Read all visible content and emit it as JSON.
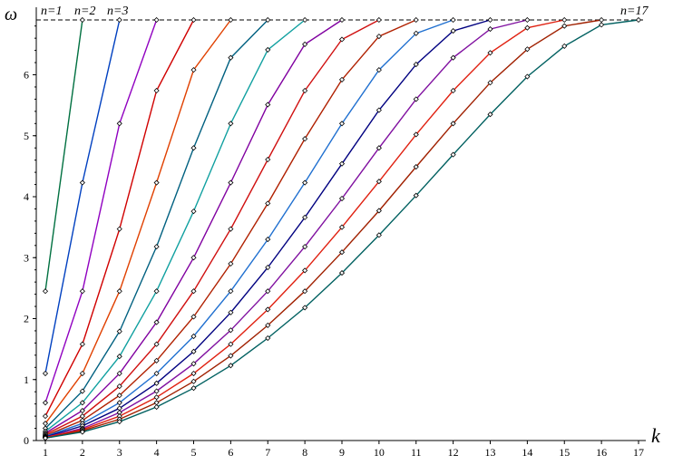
{
  "chart_data": {
    "type": "line",
    "xlabel": "k",
    "ylabel": "ω",
    "x_ticks": [
      "1",
      "2",
      "3",
      "4",
      "5",
      "6",
      "7",
      "8",
      "9",
      "10",
      "11",
      "12",
      "13",
      "14",
      "15",
      "16",
      "17"
    ],
    "y_ticks": [
      "0",
      "1",
      "2",
      "3",
      "4",
      "5",
      "6"
    ],
    "xlim": [
      1,
      17
    ],
    "ylim": [
      0,
      6.93
    ],
    "asymptote": 6.9,
    "annotations": [
      "n=1",
      "n=2",
      "n=3",
      "n=17"
    ],
    "series": [
      {
        "color": "#007040",
        "x": [
          1,
          2
        ],
        "y": [
          2.45,
          6.9
        ]
      },
      {
        "color": "#0040c0",
        "x": [
          1,
          2,
          3
        ],
        "y": [
          1.1,
          4.23,
          6.9
        ]
      },
      {
        "color": "#9000c0",
        "x": [
          1,
          2,
          3,
          4
        ],
        "y": [
          0.62,
          2.45,
          5.2,
          6.9
        ]
      },
      {
        "color": "#d00000",
        "x": [
          1,
          2,
          3,
          4,
          5
        ],
        "y": [
          0.4,
          1.58,
          3.47,
          5.74,
          6.9
        ]
      },
      {
        "color": "#e04000",
        "x": [
          1,
          2,
          3,
          4,
          5,
          6
        ],
        "y": [
          0.28,
          1.1,
          2.45,
          4.23,
          6.08,
          6.9
        ]
      },
      {
        "color": "#006080",
        "x": [
          1,
          2,
          3,
          4,
          5,
          6,
          7
        ],
        "y": [
          0.2,
          0.81,
          1.79,
          3.18,
          4.8,
          6.28,
          6.9
        ]
      },
      {
        "color": "#10a0a0",
        "x": [
          1,
          2,
          3,
          4,
          5,
          6,
          7,
          8
        ],
        "y": [
          0.15,
          0.62,
          1.38,
          2.45,
          3.76,
          5.2,
          6.41,
          6.9
        ]
      },
      {
        "color": "#8000a0",
        "x": [
          1,
          2,
          3,
          4,
          5,
          6,
          7,
          8,
          9
        ],
        "y": [
          0.12,
          0.49,
          1.1,
          1.94,
          3.0,
          4.23,
          5.51,
          6.5,
          6.9
        ]
      },
      {
        "color": "#d01010",
        "x": [
          1,
          2,
          3,
          4,
          5,
          6,
          7,
          8,
          9,
          10
        ],
        "y": [
          0.1,
          0.4,
          0.89,
          1.58,
          2.45,
          3.47,
          4.61,
          5.74,
          6.58,
          6.9
        ]
      },
      {
        "color": "#b02000",
        "x": [
          1,
          2,
          3,
          4,
          5,
          6,
          7,
          8,
          9,
          10,
          11
        ],
        "y": [
          0.08,
          0.33,
          0.74,
          1.31,
          2.03,
          2.9,
          3.89,
          4.95,
          5.92,
          6.63,
          6.9
        ]
      },
      {
        "color": "#2070d0",
        "x": [
          1,
          2,
          3,
          4,
          5,
          6,
          7,
          8,
          9,
          10,
          11,
          12
        ],
        "y": [
          0.07,
          0.28,
          0.62,
          1.1,
          1.71,
          2.45,
          3.3,
          4.23,
          5.2,
          6.08,
          6.68,
          6.9
        ]
      },
      {
        "color": "#000080",
        "x": [
          1,
          2,
          3,
          4,
          5,
          6,
          7,
          8,
          9,
          10,
          11,
          12,
          13
        ],
        "y": [
          0.06,
          0.24,
          0.53,
          0.94,
          1.46,
          2.1,
          2.84,
          3.66,
          4.54,
          5.42,
          6.17,
          6.72,
          6.9
        ]
      },
      {
        "color": "#8010a0",
        "x": [
          1,
          2,
          3,
          4,
          5,
          6,
          7,
          8,
          9,
          10,
          11,
          12,
          13,
          14
        ],
        "y": [
          0.05,
          0.2,
          0.46,
          0.81,
          1.26,
          1.81,
          2.45,
          3.18,
          3.97,
          4.8,
          5.6,
          6.28,
          6.75,
          6.9
        ]
      },
      {
        "color": "#e02010",
        "x": [
          1,
          2,
          3,
          4,
          5,
          6,
          7,
          8,
          9,
          10,
          11,
          12,
          13,
          14,
          15
        ],
        "y": [
          0.05,
          0.18,
          0.4,
          0.71,
          1.1,
          1.58,
          2.15,
          2.79,
          3.5,
          4.25,
          5.02,
          5.74,
          6.36,
          6.77,
          6.9
        ]
      },
      {
        "color": "#a02000",
        "x": [
          1,
          2,
          3,
          4,
          5,
          6,
          7,
          8,
          9,
          10,
          11,
          12,
          13,
          14,
          15,
          16
        ],
        "y": [
          0.04,
          0.16,
          0.35,
          0.62,
          0.97,
          1.39,
          1.89,
          2.45,
          3.09,
          3.77,
          4.49,
          5.2,
          5.87,
          6.42,
          6.8,
          6.9
        ]
      },
      {
        "color": "#006060",
        "x": [
          1,
          2,
          3,
          4,
          5,
          6,
          7,
          8,
          9,
          10,
          11,
          12,
          13,
          14,
          15,
          16,
          17
        ],
        "y": [
          0.04,
          0.14,
          0.31,
          0.55,
          0.86,
          1.23,
          1.68,
          2.18,
          2.75,
          3.37,
          4.02,
          4.69,
          5.35,
          5.97,
          6.47,
          6.82,
          6.9
        ]
      }
    ]
  }
}
